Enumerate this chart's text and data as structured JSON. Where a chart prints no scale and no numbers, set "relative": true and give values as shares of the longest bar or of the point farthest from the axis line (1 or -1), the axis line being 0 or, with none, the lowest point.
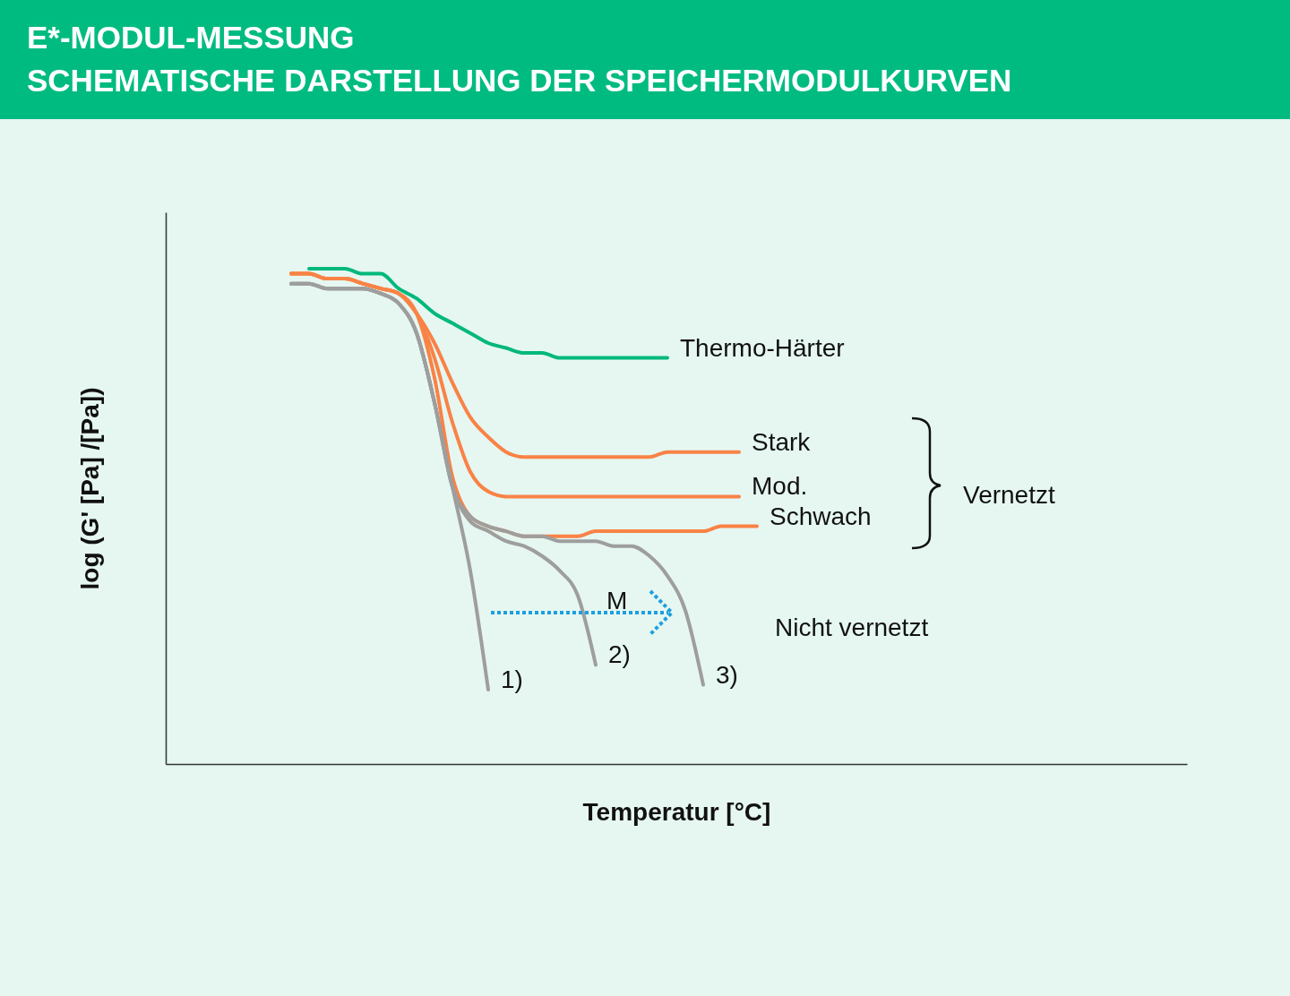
{
  "chart_data": {
    "type": "line",
    "title": "E*-MODUL-MESSUNG",
    "subtitle": "SCHEMATISCHE DARSTELLUNG DER SPEICHERMODULKURVEN",
    "xlabel": "Temperatur [°C]",
    "ylabel": "log (G' [Pa] /[Pa])",
    "relative": true,
    "categories": [
      null,
      null,
      null,
      null,
      null,
      null,
      null,
      null,
      null,
      null,
      null,
      null,
      null,
      null,
      null,
      null,
      null,
      null,
      null,
      null,
      null,
      null,
      null,
      null,
      null,
      null,
      null,
      null,
      null,
      null,
      null,
      null,
      null,
      null,
      null,
      null,
      null,
      null,
      null,
      null,
      null,
      null,
      null,
      null,
      null,
      null,
      null,
      null,
      null,
      null,
      null,
      null,
      null,
      null,
      null,
      null,
      null,
      null
    ],
    "series": [
      {
        "name": "Thermo-Härter",
        "color": "#00b87c",
        "values": [
          null,
          null,
          null,
          null,
          null,
          null,
          null,
          null,
          1.0,
          1.0,
          1.0,
          0.99,
          0.99,
          0.96,
          0.94,
          0.91,
          0.89,
          0.87,
          0.85,
          0.84,
          0.83,
          0.83,
          0.82,
          0.82,
          0.82,
          0.82,
          0.82,
          0.82,
          0.82,
          null,
          null,
          null,
          null,
          null,
          null,
          null,
          null,
          null,
          null,
          null,
          null,
          null,
          null,
          null,
          null,
          null,
          null,
          null,
          null,
          null,
          null,
          null,
          null,
          null,
          null,
          null,
          null,
          null
        ]
      },
      {
        "name": "Stark",
        "color": "#f98346",
        "values": [
          null,
          null,
          null,
          null,
          null,
          null,
          null,
          0.99,
          0.99,
          0.98,
          0.98,
          0.97,
          0.96,
          0.95,
          0.91,
          0.85,
          0.77,
          0.7,
          0.66,
          0.63,
          0.62,
          0.62,
          0.62,
          0.62,
          0.62,
          0.62,
          0.62,
          0.62,
          0.63,
          0.63,
          0.63,
          0.63,
          0.63,
          null,
          null,
          null,
          null,
          null,
          null,
          null,
          null,
          null,
          null,
          null,
          null,
          null,
          null,
          null,
          null,
          null,
          null,
          null,
          null,
          null,
          null,
          null,
          null,
          null
        ]
      },
      {
        "name": "Mod.",
        "color": "#f98346",
        "values": [
          null,
          null,
          null,
          null,
          null,
          null,
          null,
          0.99,
          0.99,
          0.98,
          0.98,
          0.97,
          0.96,
          0.95,
          0.91,
          0.82,
          0.69,
          0.59,
          0.55,
          0.54,
          0.54,
          0.54,
          0.54,
          0.54,
          0.54,
          0.54,
          0.54,
          0.54,
          0.54,
          0.54,
          0.54,
          0.54,
          0.54,
          null,
          null,
          null,
          null,
          null,
          null,
          null,
          null,
          null,
          null,
          null,
          null,
          null,
          null,
          null,
          null,
          null,
          null,
          null,
          null,
          null,
          null,
          null,
          null,
          null
        ]
      },
      {
        "name": "Schwach",
        "color": "#f98346",
        "values": [
          null,
          null,
          null,
          null,
          null,
          null,
          null,
          0.99,
          0.99,
          0.98,
          0.98,
          0.97,
          0.96,
          0.95,
          0.91,
          0.78,
          0.58,
          0.5,
          0.48,
          0.47,
          0.46,
          0.46,
          0.46,
          0.46,
          0.47,
          0.47,
          0.47,
          0.47,
          0.47,
          0.47,
          0.47,
          0.48,
          0.48,
          0.48,
          null,
          null,
          null,
          null,
          null,
          null,
          null,
          null,
          null,
          null,
          null,
          null,
          null,
          null,
          null,
          null,
          null,
          null,
          null,
          null,
          null,
          null,
          null,
          null
        ]
      },
      {
        "name": "1)",
        "color": "#9e9e9e",
        "values": [
          null,
          null,
          null,
          null,
          null,
          null,
          null,
          0.97,
          0.97,
          0.96,
          0.96,
          0.96,
          0.95,
          0.93,
          0.87,
          0.73,
          0.56,
          0.39,
          0.15,
          null,
          null,
          null,
          null,
          null,
          null,
          null,
          null,
          null,
          null,
          null,
          null,
          null,
          null,
          null,
          null,
          null,
          null,
          null,
          null,
          null,
          null,
          null,
          null,
          null,
          null,
          null,
          null,
          null,
          null,
          null,
          null,
          null,
          null,
          null,
          null,
          null,
          null,
          null
        ]
      },
      {
        "name": "2)",
        "color": "#9e9e9e",
        "values": [
          null,
          null,
          null,
          null,
          null,
          null,
          null,
          0.97,
          0.97,
          0.96,
          0.96,
          0.96,
          0.95,
          0.93,
          0.87,
          0.73,
          0.56,
          0.49,
          0.47,
          0.45,
          0.44,
          0.42,
          0.39,
          0.34,
          0.2,
          null,
          null,
          null,
          null,
          null,
          null,
          null,
          null,
          null,
          null,
          null,
          null,
          null,
          null,
          null,
          null,
          null,
          null,
          null,
          null,
          null,
          null,
          null,
          null,
          null,
          null,
          null,
          null,
          null,
          null,
          null,
          null,
          null
        ]
      },
      {
        "name": "3)",
        "color": "#9e9e9e",
        "values": [
          null,
          null,
          null,
          null,
          null,
          null,
          null,
          0.97,
          0.97,
          0.96,
          0.96,
          0.96,
          0.95,
          0.93,
          0.87,
          0.73,
          0.56,
          0.5,
          0.48,
          0.47,
          0.46,
          0.46,
          0.45,
          0.45,
          0.45,
          0.44,
          0.44,
          0.42,
          0.38,
          0.31,
          0.16,
          null,
          null,
          null,
          null,
          null,
          null,
          null,
          null,
          null,
          null,
          null,
          null,
          null,
          null,
          null,
          null,
          null,
          null,
          null,
          null,
          null,
          null,
          null,
          null,
          null,
          null,
          null
        ]
      }
    ],
    "annotations": [
      "Vernetzt",
      "Nicht vernetzt",
      "M"
    ]
  }
}
